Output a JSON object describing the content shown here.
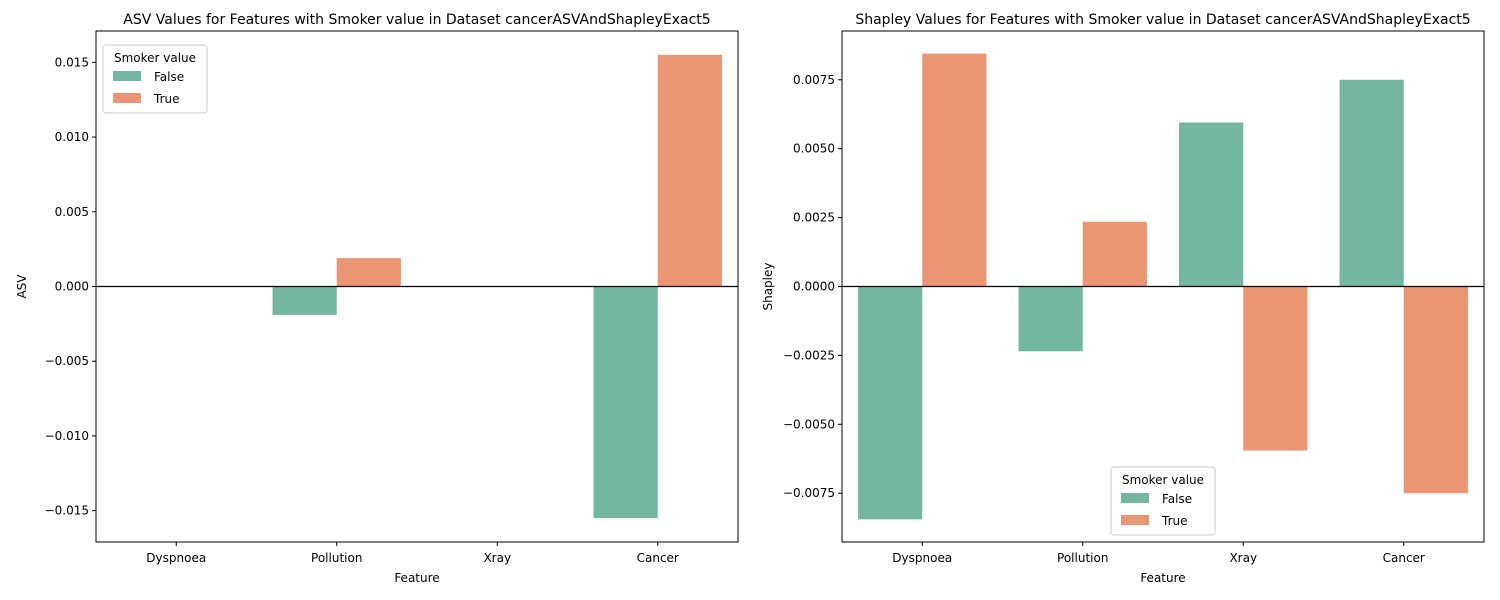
{
  "colors": {
    "False": "#73b6a2",
    "True": "#ea9675"
  },
  "chart_data": [
    {
      "type": "bar",
      "title": "ASV Values for Features with Smoker value in Dataset cancerASVAndShapleyExact5",
      "xlabel": "Feature",
      "ylabel": "ASV",
      "categories": [
        "Dyspnoea",
        "Pollution",
        "Xray",
        "Cancer"
      ],
      "ylim": [
        -0.0171,
        0.0171
      ],
      "yticks": [
        -0.015,
        -0.01,
        -0.005,
        0.0,
        0.005,
        0.01,
        0.015
      ],
      "ytick_labels": [
        "−0.015",
        "−0.010",
        "−0.005",
        "0.000",
        "0.005",
        "0.010",
        "0.015"
      ],
      "legend_title": "Smoker value",
      "legend_position": "upper left",
      "series": [
        {
          "name": "False",
          "values": [
            0.0,
            -0.0019,
            0.0,
            -0.0155
          ]
        },
        {
          "name": "True",
          "values": [
            0.0,
            0.0019,
            0.0,
            0.0155
          ]
        }
      ]
    },
    {
      "type": "bar",
      "title": "Shapley Values for Features with Smoker value in Dataset cancerASVAndShapleyExact5",
      "xlabel": "Feature",
      "ylabel": "Shapley",
      "categories": [
        "Dyspnoea",
        "Pollution",
        "Xray",
        "Cancer"
      ],
      "ylim": [
        -0.00927,
        0.00927
      ],
      "yticks": [
        -0.0075,
        -0.005,
        -0.0025,
        0.0,
        0.0025,
        0.005,
        0.0075
      ],
      "ytick_labels": [
        "−0.0075",
        "−0.0050",
        "−0.0025",
        "0.0000",
        "0.0025",
        "0.0050",
        "0.0075"
      ],
      "legend_title": "Smoker value",
      "legend_position": "lower center",
      "series": [
        {
          "name": "False",
          "values": [
            -0.00845,
            -0.00235,
            0.00595,
            0.0075
          ]
        },
        {
          "name": "True",
          "values": [
            0.00845,
            0.00235,
            -0.00595,
            -0.0075
          ]
        }
      ]
    }
  ]
}
